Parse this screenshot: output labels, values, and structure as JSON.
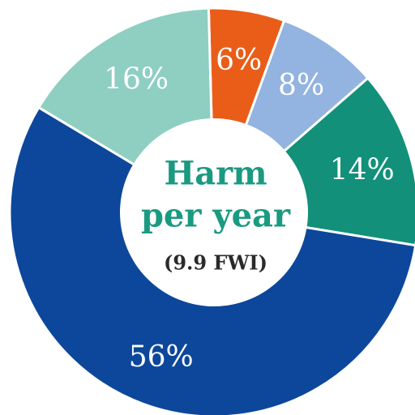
{
  "chart_data": {
    "type": "pie",
    "variant": "donut",
    "center_title_lines": [
      "Harm",
      "per year"
    ],
    "center_subtitle": "(9.9 FWI)",
    "slices": [
      {
        "label": "6%",
        "value": 6,
        "color": "#ea5d18"
      },
      {
        "label": "8%",
        "value": 8,
        "color": "#93b3e0"
      },
      {
        "label": "14%",
        "value": 14,
        "color": "#12907a"
      },
      {
        "label": "56%",
        "value": 56,
        "color": "#0c479b"
      },
      {
        "label": "16%",
        "value": 16,
        "color": "#8ecfc2"
      }
    ]
  }
}
